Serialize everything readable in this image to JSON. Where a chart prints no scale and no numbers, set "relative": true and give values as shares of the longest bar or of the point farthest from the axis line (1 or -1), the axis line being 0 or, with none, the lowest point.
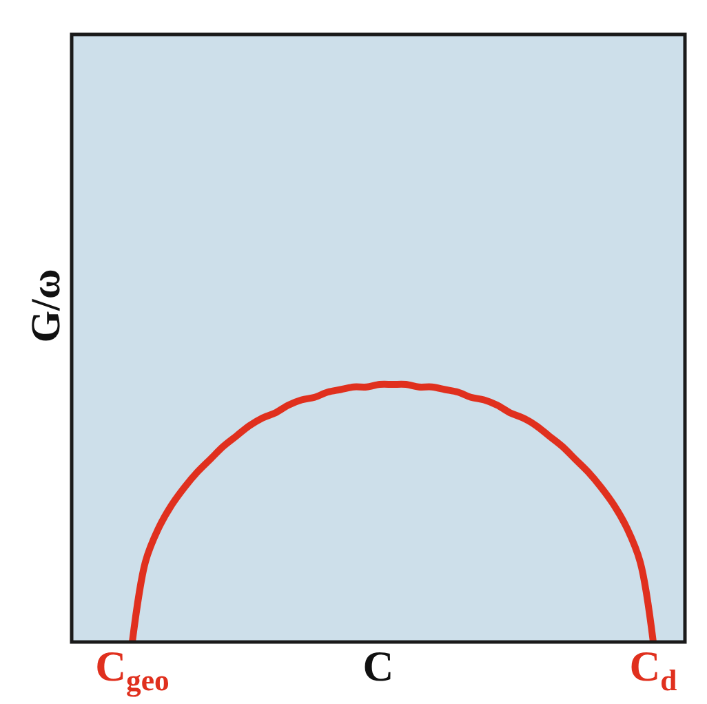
{
  "chart_data": {
    "type": "line",
    "xlabel": "C",
    "ylabel": "G/ω",
    "relative": true,
    "categories": [
      "C$_{geo}$",
      null,
      null,
      null,
      null,
      null,
      null,
      null,
      null,
      null,
      null,
      null,
      null,
      null,
      null,
      null,
      null,
      null,
      null,
      null,
      null,
      null,
      null,
      null,
      null,
      null,
      null,
      null,
      null,
      null,
      null,
      null,
      null,
      null,
      null,
      null,
      null,
      null,
      null,
      null,
      "C$_{d}$"
    ],
    "series": [
      {
        "color": "#e0301e",
        "values": [
          0,
          0.31,
          0.44,
          0.53,
          0.6,
          0.66,
          0.71,
          0.76,
          0.8,
          0.84,
          0.87,
          0.89,
          0.92,
          0.94,
          0.95,
          0.97,
          0.98,
          0.99,
          0.99,
          1,
          1,
          1,
          0.99,
          0.99,
          0.98,
          0.97,
          0.95,
          0.94,
          0.92,
          0.89,
          0.87,
          0.84,
          0.8,
          0.76,
          0.71,
          0.66,
          0.6,
          0.53,
          0.44,
          0.31,
          0
        ]
      }
    ],
    "tick_labels": "x"
  }
}
